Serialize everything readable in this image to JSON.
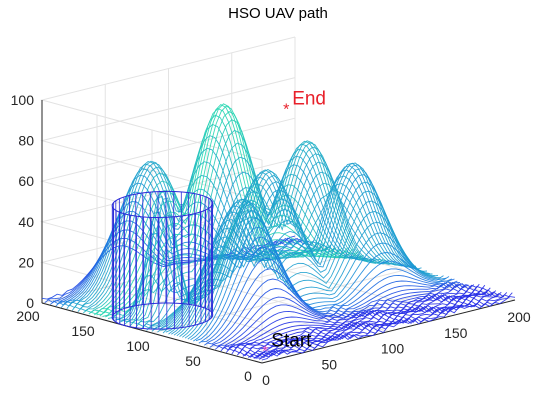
{
  "chart_data": {
    "type": "surface3d",
    "title": "HSO UAV path",
    "xlabel": "",
    "ylabel": "",
    "zlabel": "",
    "xlim": [
      0,
      200
    ],
    "ylim": [
      0,
      200
    ],
    "zlim": [
      0,
      100
    ],
    "x_ticks": [
      "0",
      "50",
      "100",
      "150",
      "200"
    ],
    "y_ticks": [
      "0",
      "50",
      "100",
      "150",
      "200"
    ],
    "z_ticks": [
      "0",
      "20",
      "40",
      "60",
      "80",
      "100"
    ],
    "grid": true,
    "colormap": [
      "#2323e6",
      "#1a7fe0",
      "#23d8b0"
    ],
    "peaks": [
      {
        "x": 100,
        "y": 150,
        "height": 90
      },
      {
        "x": 140,
        "y": 120,
        "height": 70
      },
      {
        "x": 60,
        "y": 170,
        "height": 65
      },
      {
        "x": 95,
        "y": 105,
        "height": 65
      },
      {
        "x": 150,
        "y": 90,
        "height": 62
      },
      {
        "x": 50,
        "y": 75,
        "height": 62
      }
    ],
    "cylinder_obstacle": {
      "cx": 30,
      "cy": 125,
      "radius": 30,
      "height": 55
    },
    "small_peak": {
      "x": 30,
      "y": 125,
      "height": 63
    },
    "annotations": [
      {
        "label": "Start",
        "x": 20,
        "y": 20,
        "z": 0,
        "color": "#000000",
        "marker_color": "#d040c0"
      },
      {
        "label": "End",
        "x": 180,
        "y": 185,
        "z": 70,
        "color": "#e8202a",
        "marker_color": "#e8202a"
      }
    ]
  }
}
